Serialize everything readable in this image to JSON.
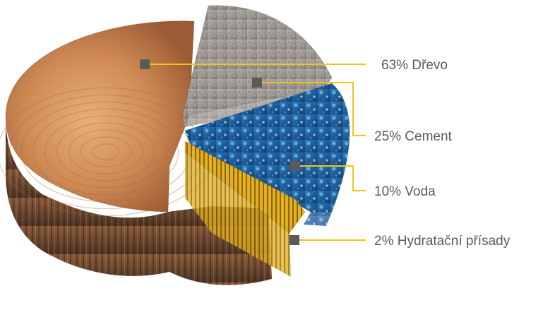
{
  "chart_data": {
    "type": "pie",
    "title": "",
    "leader_color": "#f0c419",
    "marker_color": "#5a5a5a",
    "slices": [
      {
        "name": "Dřevo",
        "value": 63,
        "label": "63% Dřevo",
        "texture": "wood"
      },
      {
        "name": "Cement",
        "value": 25,
        "label": "25% Cement",
        "texture": "concrete"
      },
      {
        "name": "Voda",
        "value": 10,
        "label": "10% Voda",
        "texture": "water"
      },
      {
        "name": "Hydratační přísady",
        "value": 2,
        "label": "2% Hydratační přísady",
        "texture": "ribbed-yellow"
      }
    ]
  }
}
